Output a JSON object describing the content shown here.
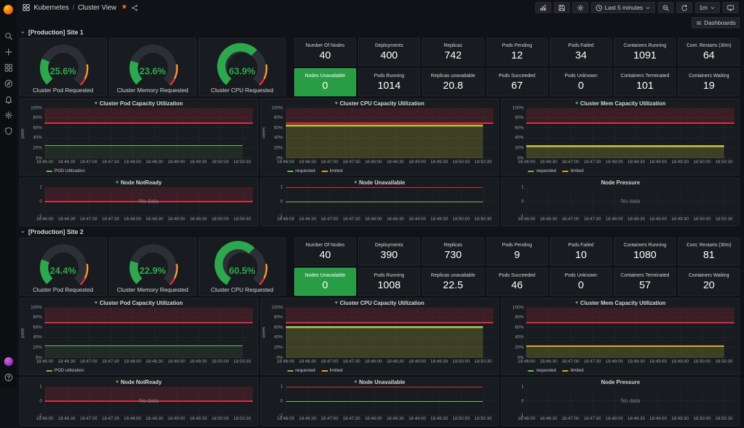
{
  "colors": {
    "page_bg": "#111217",
    "panel_bg": "#181b1f",
    "green": "#73bf69",
    "green_fill": "rgba(115,191,105,0.10)",
    "yellow": "#d9af27",
    "yellow_fill": "rgba(217,175,39,0.16)",
    "red": "#e02f44",
    "red_region": "rgba(224,47,68,0.18)",
    "orange": "#ff9830",
    "gauge_green": "#2ea84e",
    "gauge_track": "#2c3036",
    "stat_green_bg": "#299c46",
    "star_orange": "#eb7b18"
  },
  "sidebar": {
    "items": [
      "grafana-logo",
      "search",
      "create",
      "dashboards",
      "explore",
      "alerting",
      "configuration",
      "server-admin"
    ],
    "bottom_items": [
      "user-profile",
      "help"
    ]
  },
  "topbar": {
    "breadcrumb": {
      "root": "Kubernetes",
      "separator": "/",
      "current": "Cluster View"
    },
    "time_range": "Last 5 minutes",
    "refresh_interval": "1m"
  },
  "dashboards_button_label": "Dashboards",
  "chart_data": {
    "type": "line",
    "no_data_text": "No data",
    "percent_y_ticks": [
      "0%",
      "20%",
      "40%",
      "60%",
      "80%",
      "100%"
    ],
    "node_y_ticks": [
      "-1",
      "0",
      "1"
    ],
    "sites": [
      {
        "section_title": "[Production] Site 1",
        "gauges": [
          {
            "label": "Cluster Pod Requested",
            "value": 25.6,
            "display": "25.6%"
          },
          {
            "label": "Cluster Memory Requested",
            "value": 23.6,
            "display": "23.6%"
          },
          {
            "label": "Cluster CPU Requested",
            "value": 63.9,
            "display": "63.9%"
          }
        ],
        "stats": [
          [
            {
              "label": "Number Of Nodes",
              "value": "40"
            },
            {
              "label": "Deployments",
              "value": "400"
            },
            {
              "label": "Replicas",
              "value": "742"
            },
            {
              "label": "Pods Pending",
              "value": "12"
            },
            {
              "label": "Pods Failed",
              "value": "34"
            },
            {
              "label": "Containers Running",
              "value": "1091"
            },
            {
              "label": "Cont. Restarts (30m)",
              "value": "64"
            }
          ],
          [
            {
              "label": "Nodes Unavailable",
              "value": "0",
              "highlight": true
            },
            {
              "label": "Pods Running",
              "value": "1014"
            },
            {
              "label": "Replicas unavailable",
              "value": "20.8"
            },
            {
              "label": "Pods Succeeded",
              "value": "67"
            },
            {
              "label": "Pods Unknown",
              "value": "0"
            },
            {
              "label": "Containers Terminated",
              "value": "101"
            },
            {
              "label": "Containers Waiting",
              "value": "19"
            }
          ]
        ],
        "x_ticks": [
          "18:46:00",
          "18:46:30",
          "18:47:00",
          "18:47:30",
          "18:48:00",
          "18:48:30",
          "18:49:00",
          "18:49:30",
          "18:50:00",
          "18:50:30"
        ],
        "utilization_charts": [
          {
            "title": "Cluster Pod Capacity Utilization",
            "healthy": true,
            "y_axis_label": "pods",
            "ylim": [
              0,
              100
            ],
            "threshold": 70,
            "series": [
              {
                "name": "POD Utilization",
                "color": "green",
                "value": 25.6
              }
            ]
          },
          {
            "title": "Cluster CPU Capacity Utilization",
            "healthy": true,
            "y_axis_label": "cores",
            "ylim": [
              0,
              100
            ],
            "threshold": 70,
            "series": [
              {
                "name": "requested",
                "color": "green",
                "value": 63.9
              },
              {
                "name": "limited",
                "color": "yellow",
                "value": 66
              }
            ]
          },
          {
            "title": "Cluster Mem Capacity Utilization",
            "healthy": true,
            "y_axis_label": "",
            "ylim": [
              0,
              100
            ],
            "threshold": 70,
            "series": [
              {
                "name": "requested",
                "color": "green",
                "value": 23.6
              },
              {
                "name": "limited",
                "color": "yellow",
                "value": 24.8
              }
            ]
          }
        ],
        "node_charts": [
          {
            "title": "Node NotReady",
            "healthy": true,
            "ylim": [
              -1,
              1
            ],
            "no_data": true,
            "threshold_line": 0,
            "region_above_threshold": true
          },
          {
            "title": "Node Unavailable",
            "healthy": true,
            "ylim": [
              -1,
              1
            ],
            "flat_lines": [
              {
                "color": "red",
                "value": 1
              },
              {
                "color": "green",
                "value": 0
              }
            ]
          },
          {
            "title": "Node Pressure",
            "healthy": false,
            "ylim": [
              -1,
              1
            ],
            "no_data": true
          }
        ]
      },
      {
        "section_title": "[Production] Site 2",
        "gauges": [
          {
            "label": "Cluster Pod Requested",
            "value": 24.4,
            "display": "24.4%"
          },
          {
            "label": "Cluster Memory Requested",
            "value": 22.9,
            "display": "22.9%"
          },
          {
            "label": "Cluster CPU Requested",
            "value": 60.5,
            "display": "60.5%"
          }
        ],
        "stats": [
          [
            {
              "label": "Number Of Nodes",
              "value": "40"
            },
            {
              "label": "Deployments",
              "value": "390"
            },
            {
              "label": "Replicas",
              "value": "730"
            },
            {
              "label": "Pods Pending",
              "value": "9"
            },
            {
              "label": "Pods Failed",
              "value": "10"
            },
            {
              "label": "Containers Running",
              "value": "1080"
            },
            {
              "label": "Cont. Restarts (30m)",
              "value": "81"
            }
          ],
          [
            {
              "label": "Nodes Unavailable",
              "value": "0",
              "highlight": true
            },
            {
              "label": "Pods Running",
              "value": "1008"
            },
            {
              "label": "Replicas unavailable",
              "value": "22.5"
            },
            {
              "label": "Pods Succeeded",
              "value": "46"
            },
            {
              "label": "Pods Unknown",
              "value": "0"
            },
            {
              "label": "Containers Terminated",
              "value": "57"
            },
            {
              "label": "Containers Waiting",
              "value": "20"
            }
          ]
        ],
        "x_ticks": [
          "18:46:00",
          "18:46:30",
          "18:47:00",
          "18:47:30",
          "18:48:00",
          "18:48:30",
          "18:49:00",
          "18:49:30",
          "18:50:00",
          "18:50:30"
        ],
        "utilization_charts": [
          {
            "title": "Cluster Pod Capacity Utilization",
            "healthy": true,
            "y_axis_label": "pods",
            "ylim": [
              0,
              100
            ],
            "threshold": 70,
            "series": [
              {
                "name": "POD utilization",
                "color": "green",
                "value": 24.4
              }
            ]
          },
          {
            "title": "Cluster CPU Capacity Utilization",
            "healthy": true,
            "y_axis_label": "cores",
            "ylim": [
              0,
              100
            ],
            "threshold": 70,
            "series": [
              {
                "name": "requested",
                "color": "green",
                "value": 60.5
              },
              {
                "name": "limited",
                "color": "yellow",
                "value": 62.5
              }
            ]
          },
          {
            "title": "Cluster Mem Capacity Utilization",
            "healthy": true,
            "y_axis_label": "",
            "ylim": [
              0,
              100
            ],
            "threshold": 70,
            "series": [
              {
                "name": "requested",
                "color": "green",
                "value": 22.9
              },
              {
                "name": "limited",
                "color": "yellow",
                "value": 23.8
              }
            ]
          }
        ],
        "node_charts": [
          {
            "title": "Node NotReady",
            "healthy": true,
            "ylim": [
              -1,
              1
            ],
            "no_data": true,
            "threshold_line": 0,
            "region_above_threshold": true
          },
          {
            "title": "Node Unavailable",
            "healthy": true,
            "ylim": [
              -1,
              1
            ],
            "flat_lines": [
              {
                "color": "red",
                "value": 1
              },
              {
                "color": "green",
                "value": 0
              }
            ]
          },
          {
            "title": "Node Pressure",
            "healthy": false,
            "ylim": [
              -1,
              1
            ],
            "no_data": true
          }
        ]
      }
    ]
  }
}
